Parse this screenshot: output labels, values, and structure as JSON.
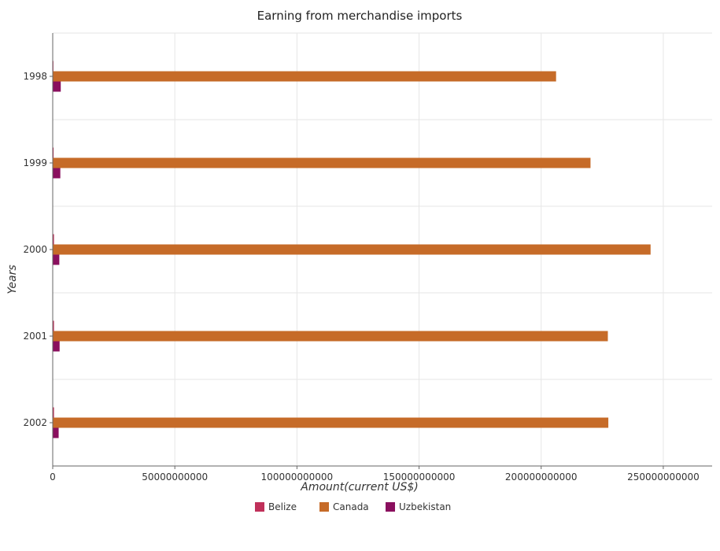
{
  "chart_data": {
    "type": "bar",
    "orientation": "horizontal",
    "title": "Earning from merchandise imports",
    "xlabel": "Amount(current US$)",
    "ylabel": "Years",
    "categories": [
      "1998",
      "1999",
      "2000",
      "2001",
      "2002"
    ],
    "xlim": [
      0,
      270000000000
    ],
    "xticks": [
      0,
      50000000000,
      100000000000,
      150000000000,
      200000000000,
      250000000000
    ],
    "xtick_labels": [
      "0",
      "50000000000",
      "100000000000",
      "150000000000",
      "200000000000",
      "250000000000"
    ],
    "grid": true,
    "legend_position": "bottom",
    "series": [
      {
        "name": "Belize",
        "color": "#c0305a",
        "values": [
          295000000,
          370000000,
          524000000,
          527000000,
          527000000
        ]
      },
      {
        "name": "Canada",
        "color": "#c66b28",
        "values": [
          206100000000,
          220200000000,
          244800000000,
          227300000000,
          227500000000
        ]
      },
      {
        "name": "Uzbekistan",
        "color": "#8a0f5e",
        "values": [
          3290000000,
          3110000000,
          2700000000,
          2820000000,
          2430000000
        ]
      }
    ]
  }
}
